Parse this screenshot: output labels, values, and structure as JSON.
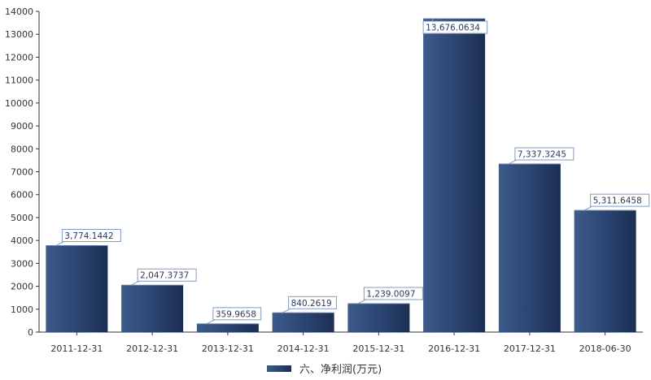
{
  "chart_data": {
    "type": "bar",
    "categories": [
      "2011-12-31",
      "2012-12-31",
      "2013-12-31",
      "2014-12-31",
      "2015-12-31",
      "2016-12-31",
      "2017-12-31",
      "2018-06-30"
    ],
    "series": [
      {
        "name": "六、净利润(万元)",
        "values": [
          3774.1442,
          2047.3737,
          359.9658,
          840.2619,
          1239.0097,
          13676.0634,
          7337.3245,
          5311.6458
        ],
        "labels": [
          "3,774.1442",
          "2,047.3737",
          "359.9658",
          "840.2619",
          "1,239.0097",
          "13,676.0634",
          "7,337.3245",
          "5,311.6458"
        ]
      }
    ],
    "yticks": [
      "0",
      "1000",
      "2000",
      "3000",
      "4000",
      "5000",
      "6000",
      "7000",
      "8000",
      "9000",
      "10000",
      "11000",
      "12000",
      "13000",
      "14000"
    ],
    "ylim": [
      0,
      14000
    ],
    "grid": false,
    "legend_position": "bottom",
    "colors": {
      "bar_dark": "#1c2f52",
      "bar_light": "#3d5a8a",
      "axis": "#333333",
      "label_border": "#7f9cc4"
    }
  }
}
